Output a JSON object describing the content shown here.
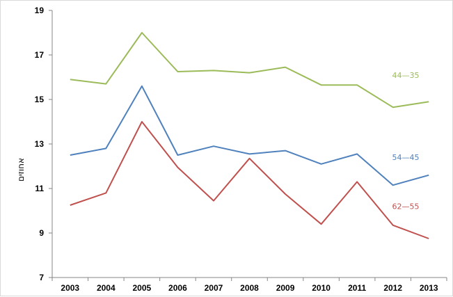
{
  "chart_data": {
    "type": "line",
    "title": "",
    "xlabel": "",
    "ylabel": "אחוזים",
    "x": [
      "2003",
      "2004",
      "2005",
      "2006",
      "2007",
      "2008",
      "2009",
      "2010",
      "2011",
      "2012",
      "2013"
    ],
    "ylim": [
      7,
      19
    ],
    "yticks": [
      7,
      9,
      11,
      13,
      15,
      17,
      19
    ],
    "grid": false,
    "series": [
      {
        "name": "44—35",
        "color": "#9bbb59",
        "values": [
          15.9,
          15.7,
          18.0,
          16.25,
          16.3,
          16.2,
          16.45,
          15.65,
          15.65,
          14.65,
          14.9
        ]
      },
      {
        "name": "54—45",
        "color": "#4f81bd",
        "values": [
          12.5,
          12.8,
          15.6,
          12.5,
          12.9,
          12.55,
          12.7,
          12.1,
          12.55,
          11.15,
          11.6
        ]
      },
      {
        "name": "62—55",
        "color": "#c0504d",
        "values": [
          10.25,
          10.8,
          14.0,
          11.95,
          10.45,
          12.35,
          10.75,
          9.4,
          11.3,
          9.35,
          8.75
        ]
      }
    ]
  }
}
